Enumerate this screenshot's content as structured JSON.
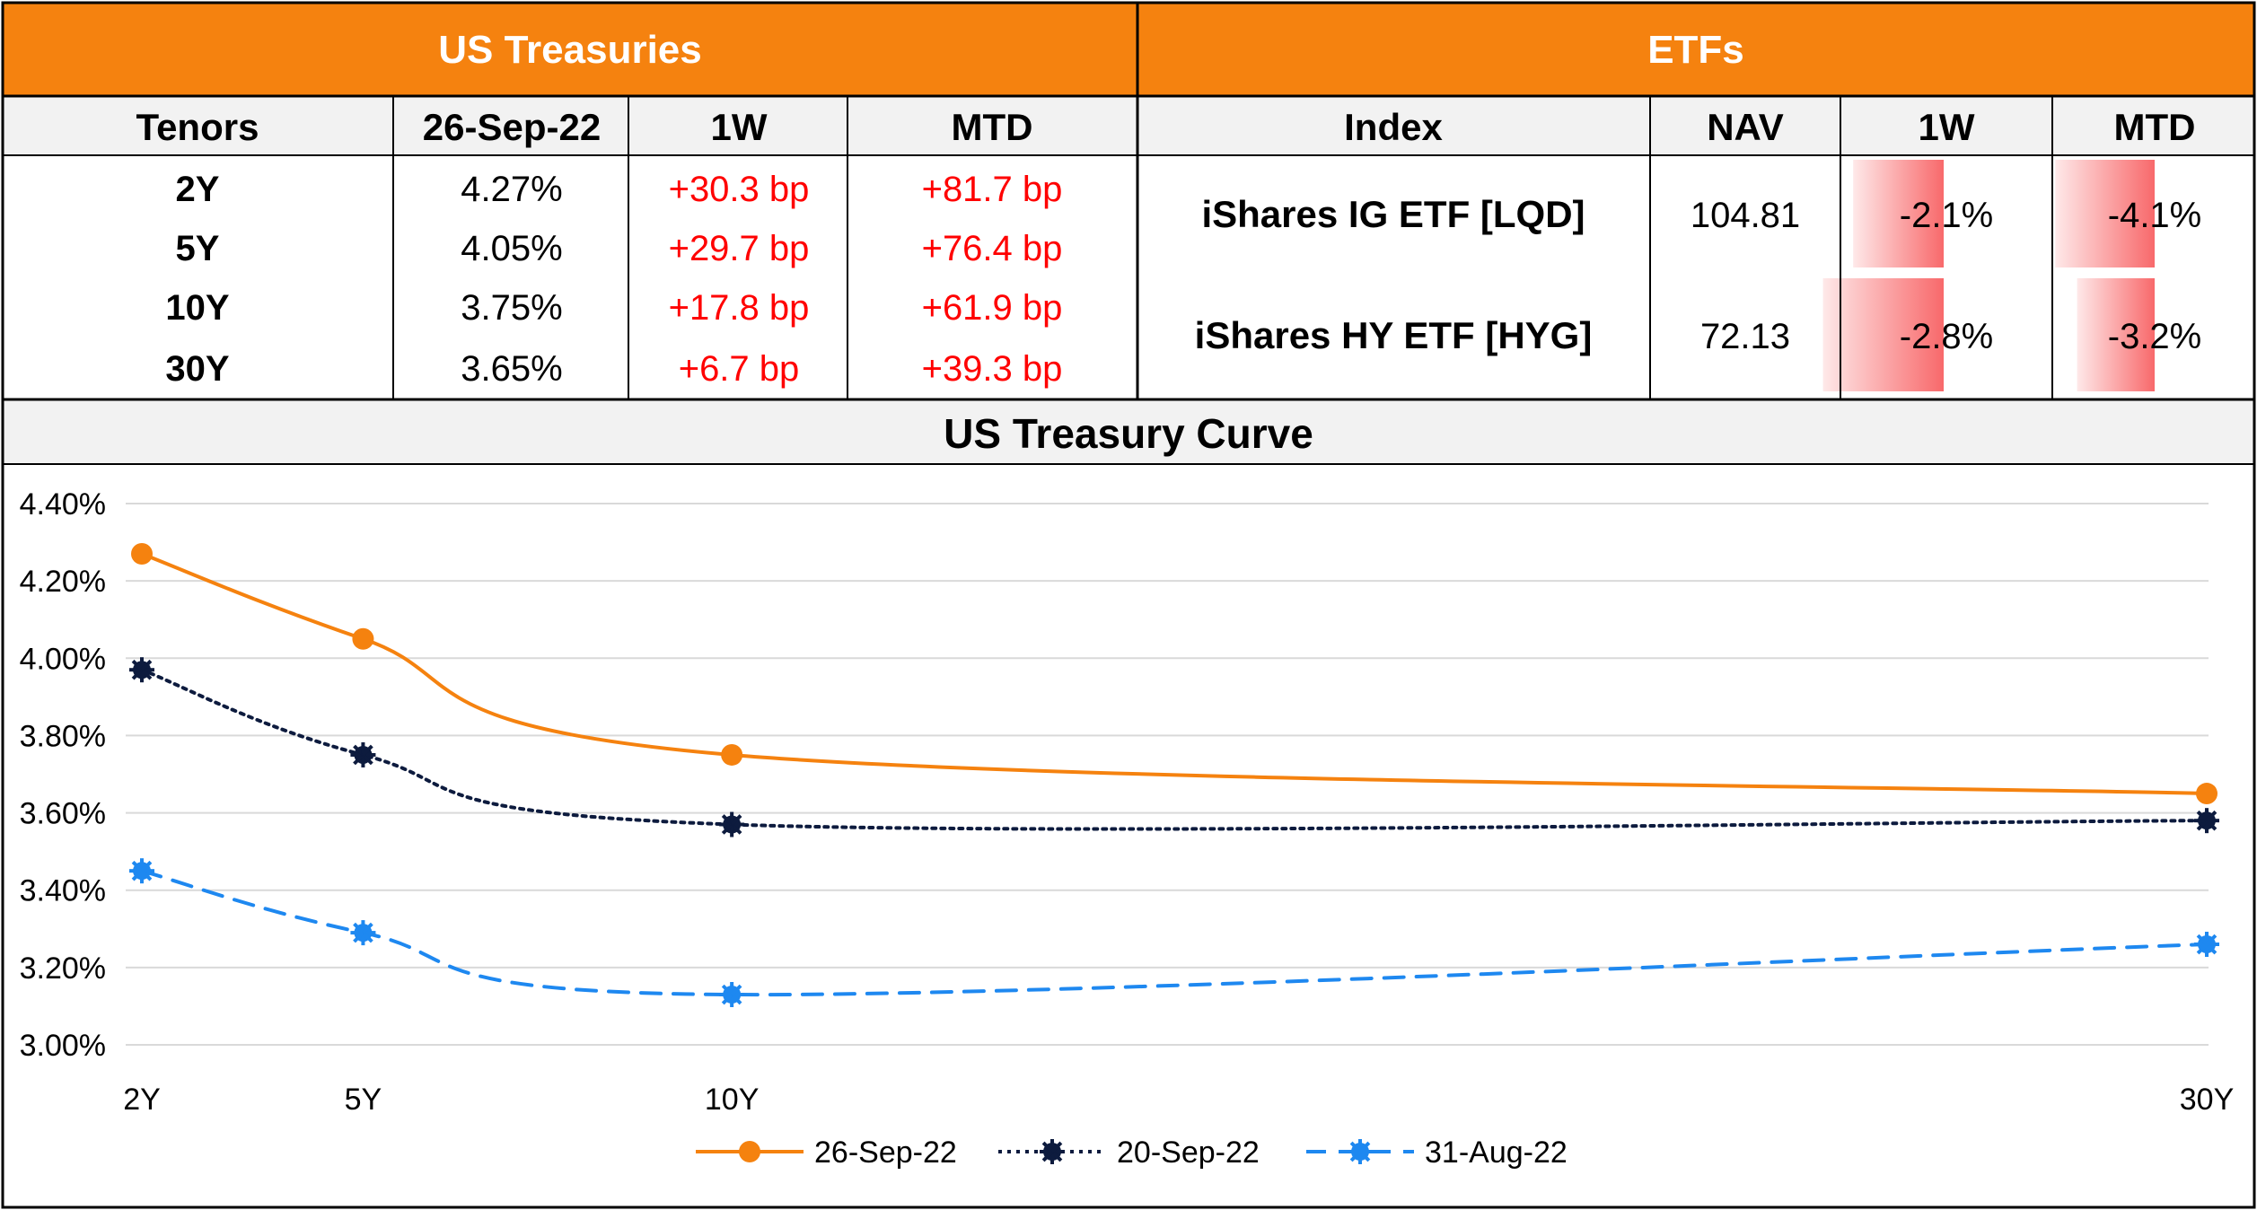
{
  "treasuries": {
    "title": "US Treasuries",
    "headers": [
      "Tenors",
      "26-Sep-22",
      "1W",
      "MTD"
    ],
    "rows": [
      {
        "tenor": "2Y",
        "yield": "4.27%",
        "w1": "+30.3 bp",
        "mtd": "+81.7 bp"
      },
      {
        "tenor": "5Y",
        "yield": "4.05%",
        "w1": "+29.7 bp",
        "mtd": "+76.4 bp"
      },
      {
        "tenor": "10Y",
        "yield": "3.75%",
        "w1": "+17.8 bp",
        "mtd": "+61.9 bp"
      },
      {
        "tenor": "30Y",
        "yield": "3.65%",
        "w1": "+6.7 bp",
        "mtd": "+39.3 bp"
      }
    ]
  },
  "etfs": {
    "title": "ETFs",
    "headers": [
      "Index",
      "NAV",
      "1W",
      "MTD"
    ],
    "rows": [
      {
        "index": "iShares IG ETF [LQD]",
        "nav": "104.81",
        "w1": "-2.1%",
        "mtd": "-4.1%",
        "w1_value": -2.1,
        "mtd_value": -4.1
      },
      {
        "index": "iShares HY ETF [HYG]",
        "nav": "72.13",
        "w1": "-2.8%",
        "mtd": "-3.2%",
        "w1_value": -2.8,
        "mtd_value": -3.2
      }
    ]
  },
  "colors": {
    "header_orange": "#F5820F",
    "positive_bp_red": "#FF0000",
    "databar_red": "#F8696B",
    "series_orange": "#F5820F",
    "series_navy": "#0D1B3E",
    "series_blue": "#1E88F0",
    "gridline": "#D9D9D9"
  },
  "chart_data": {
    "type": "line",
    "title": "US Treasury Curve",
    "x": [
      2,
      5,
      10,
      30
    ],
    "x_tick_labels": [
      "2Y",
      "5Y",
      "10Y",
      "30Y"
    ],
    "xlabel": "",
    "ylabel": "",
    "ylim": [
      3.0,
      4.4
    ],
    "y_ticks": [
      3.0,
      3.2,
      3.4,
      3.6,
      3.8,
      4.0,
      4.2,
      4.4
    ],
    "y_tick_labels": [
      "3.00%",
      "3.20%",
      "3.40%",
      "3.60%",
      "3.80%",
      "4.00%",
      "4.20%",
      "4.40%"
    ],
    "grid": true,
    "legend_position": "bottom",
    "series": [
      {
        "name": "26-Sep-22",
        "values": [
          4.27,
          4.05,
          3.75,
          3.65
        ],
        "style": "solid"
      },
      {
        "name": "20-Sep-22",
        "values": [
          3.97,
          3.75,
          3.57,
          3.58
        ],
        "style": "dotted"
      },
      {
        "name": "31-Aug-22",
        "values": [
          3.45,
          3.29,
          3.13,
          3.26
        ],
        "style": "dashed"
      }
    ]
  }
}
